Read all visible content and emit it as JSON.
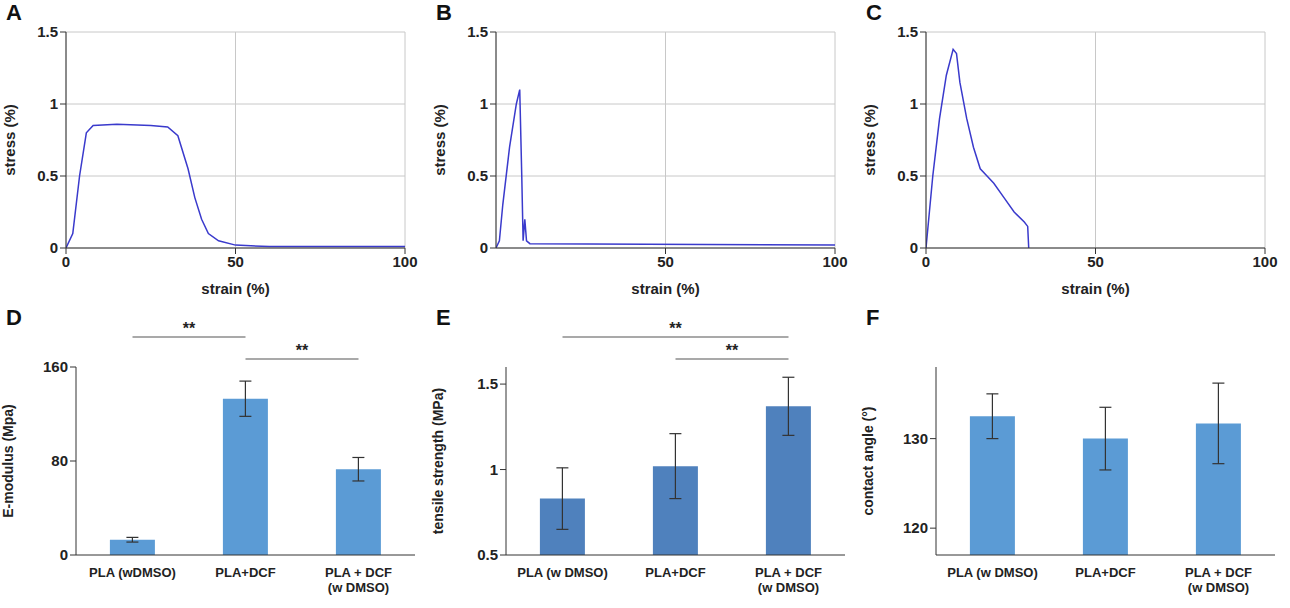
{
  "chart_data": [
    {
      "type": "line",
      "title": "A",
      "x_label": "strain (%)",
      "y_label": "stress (%)",
      "color": "#3a3acc",
      "x": [
        0,
        2,
        4,
        6,
        8,
        15,
        25,
        30,
        33,
        36,
        38,
        40,
        42,
        45,
        50,
        60,
        100
      ],
      "values": [
        0,
        0.1,
        0.5,
        0.8,
        0.85,
        0.86,
        0.85,
        0.84,
        0.78,
        0.55,
        0.35,
        0.2,
        0.1,
        0.05,
        0.02,
        0.01,
        0.01
      ],
      "xlim": [
        0,
        100
      ],
      "xticks": [
        0,
        50,
        100
      ],
      "ylim": [
        0,
        1.5
      ],
      "yticks": [
        0,
        0.5,
        1,
        1.5
      ],
      "grid": true
    },
    {
      "type": "line",
      "title": "B",
      "x_label": "strain (%)",
      "y_label": "stress (%)",
      "color": "#3a3acc",
      "x": [
        0,
        1,
        2,
        4,
        6,
        7,
        7.6,
        8,
        8.5,
        9,
        10,
        100
      ],
      "values": [
        0,
        0.05,
        0.3,
        0.7,
        1.0,
        1.1,
        0.5,
        0.05,
        0.2,
        0.05,
        0.03,
        0.02
      ],
      "xlim": [
        0,
        100
      ],
      "xticks": [
        50,
        100
      ],
      "ylim": [
        0,
        1.5
      ],
      "yticks": [
        0,
        0.5,
        1,
        1.5
      ],
      "grid": true
    },
    {
      "type": "line",
      "title": "C",
      "x_label": "strain (%)",
      "y_label": "stress (%)",
      "color": "#3a3acc",
      "x": [
        0,
        2,
        4,
        6,
        8,
        9,
        10,
        12,
        14,
        16,
        18,
        20,
        23,
        26,
        29,
        30,
        30.3
      ],
      "values": [
        0,
        0.5,
        0.9,
        1.2,
        1.38,
        1.35,
        1.15,
        0.9,
        0.7,
        0.55,
        0.5,
        0.45,
        0.35,
        0.25,
        0.18,
        0.15,
        0
      ],
      "xlim": [
        0,
        100
      ],
      "xticks": [
        0,
        50,
        100
      ],
      "ylim": [
        0,
        1.5
      ],
      "yticks": [
        0,
        0.5,
        1,
        1.5
      ],
      "grid": true
    },
    {
      "type": "bar",
      "title": "D",
      "y_label": "E-modulus (Mpa)",
      "color": "#5b9bd5",
      "categories": [
        "PLA (wDMSO)",
        "PLA+DCF",
        "PLA + DCF (w DMSO)"
      ],
      "values": [
        13,
        133,
        73
      ],
      "errors": [
        2,
        15,
        10
      ],
      "ylim": [
        0,
        160
      ],
      "yticks": [
        0,
        80,
        160
      ],
      "grid": false,
      "annotations": [
        {
          "from": 0,
          "to": 1,
          "label": "**"
        },
        {
          "from": 1,
          "to": 2,
          "label": "**"
        }
      ]
    },
    {
      "type": "bar",
      "title": "E",
      "y_label": "tensile strength (MPa)",
      "color": "#4f81bd",
      "categories": [
        "PLA (w DMSO)",
        "PLA+DCF",
        "PLA + DCF (w DMSO)"
      ],
      "values": [
        0.83,
        1.02,
        1.37
      ],
      "errors": [
        0.18,
        0.19,
        0.17
      ],
      "ylim": [
        0.5,
        1.6
      ],
      "yticks": [
        0.5,
        1,
        1.5
      ],
      "grid": false,
      "annotations": [
        {
          "from": 0,
          "to": 2,
          "label": "**"
        },
        {
          "from": 1,
          "to": 2,
          "label": "**"
        }
      ]
    },
    {
      "type": "bar",
      "title": "F",
      "y_label": "contact angle (°)",
      "color": "#5b9bd5",
      "categories": [
        "PLA (w DMSO)",
        "PLA+DCF",
        "PLA + DCF (w DMSO)"
      ],
      "values": [
        132.5,
        130,
        131.7
      ],
      "errors": [
        2.5,
        3.5,
        4.5
      ],
      "ylim": [
        117,
        138
      ],
      "yticks": [
        120,
        130
      ],
      "grid": false,
      "annotations": []
    }
  ]
}
